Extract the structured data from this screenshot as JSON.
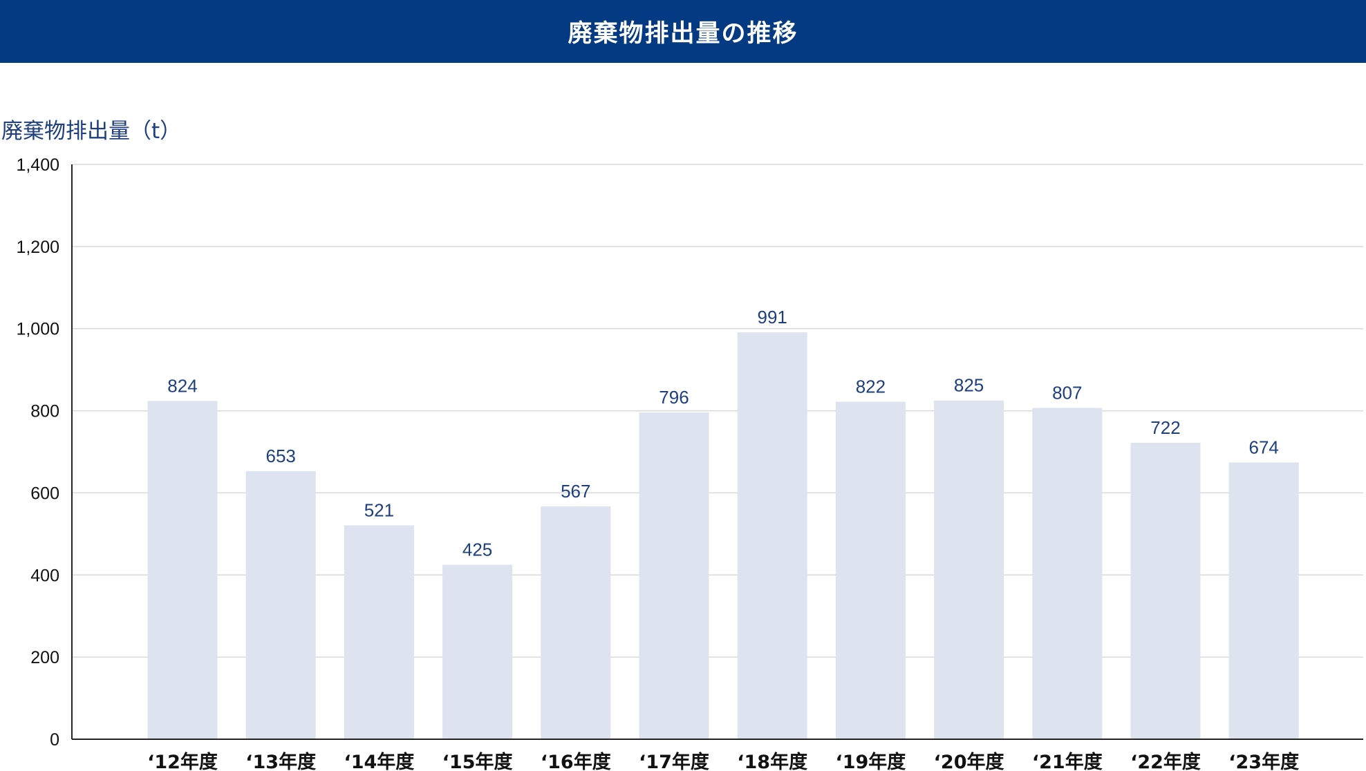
{
  "header": {
    "title": "廃棄物排出量の推移"
  },
  "colors": {
    "header_bg": "#043a82",
    "bar": "#dde3ef",
    "value_label": "#1e3f7f",
    "grid": "#d9d9d9",
    "axis": "#222222"
  },
  "chart_data": {
    "type": "bar",
    "title": "廃棄物排出量の推移",
    "ylabel": "廃棄物排出量（t）",
    "xlabel": "",
    "categories": [
      "‘12年度",
      "‘13年度",
      "‘14年度",
      "‘15年度",
      "‘16年度",
      "‘17年度",
      "‘18年度",
      "‘19年度",
      "‘20年度",
      "‘21年度",
      "‘22年度",
      "‘23年度"
    ],
    "values": [
      824,
      653,
      521,
      425,
      567,
      796,
      991,
      822,
      825,
      807,
      722,
      674
    ],
    "ylim": [
      0,
      1400
    ],
    "yticks": [
      0,
      200,
      400,
      600,
      800,
      1000,
      1200,
      1400
    ],
    "ytick_labels": [
      "0",
      "200",
      "400",
      "600",
      "800",
      "1,000",
      "1,200",
      "1,400"
    ],
    "grid": true,
    "legend": "none"
  }
}
